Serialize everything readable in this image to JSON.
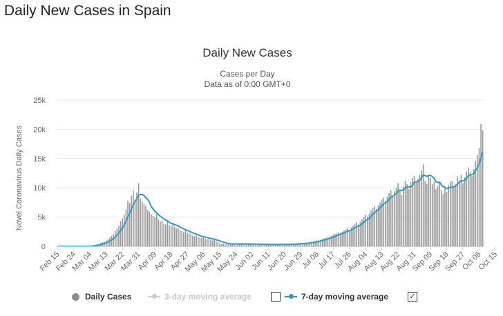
{
  "page_title": "Daily New Cases in Spain",
  "colors": {
    "bar": "#999999",
    "ma7": "#2b9bc4",
    "ma3": "#c8c8c8",
    "grid": "#e6e6e6",
    "axis": "#ccd6eb"
  },
  "legend": {
    "daily": "Daily Cases",
    "ma3": "3-day moving average",
    "ma7": "7-day moving average",
    "ma3_checked": "",
    "ma7_checked": "✓"
  },
  "chart_data": {
    "type": "bar",
    "title": "Daily New Cases",
    "subtitle": "Cases per Day",
    "subtitle2": "Data as of 0:00 GMT+0",
    "ylabel": "Novel Coronavirus Daily Cases",
    "xlabel": "",
    "ylim": [
      0,
      25000
    ],
    "yticks": [
      0,
      5000,
      10000,
      15000,
      20000,
      25000
    ],
    "ytick_labels": [
      "0",
      "5k",
      "10k",
      "15k",
      "20k",
      "25k"
    ],
    "x_tick_labels": [
      "Feb 15",
      "Feb 24",
      "Mar 04",
      "Mar 13",
      "Mar 22",
      "Mar 31",
      "Apr 09",
      "Apr 18",
      "Apr 27",
      "May 06",
      "May 15",
      "May 24",
      "Jun 02",
      "Jun 11",
      "Jun 20",
      "Jun 29",
      "Jul 08",
      "Jul 17",
      "Jul 26",
      "Aug 04",
      "Aug 13",
      "Aug 22",
      "Aug 31",
      "Sep 09",
      "Sep 18",
      "Sep 27",
      "Oct 06",
      "Oct 15"
    ],
    "x_tick_interval_days": 9,
    "grid": true,
    "legend_position": "bottom",
    "anchors": [
      [
        0,
        0
      ],
      [
        9,
        10
      ],
      [
        14,
        80
      ],
      [
        18,
        400
      ],
      [
        20,
        1000
      ],
      [
        22,
        2000
      ],
      [
        24,
        3500
      ],
      [
        26,
        5500
      ],
      [
        28,
        7500
      ],
      [
        30,
        9000
      ],
      [
        32,
        9500
      ],
      [
        34,
        8500
      ],
      [
        36,
        7500
      ],
      [
        38,
        6500
      ],
      [
        40,
        5500
      ],
      [
        42,
        5000
      ],
      [
        46,
        4500
      ],
      [
        50,
        4000
      ],
      [
        54,
        3500
      ],
      [
        58,
        2800
      ],
      [
        62,
        2200
      ],
      [
        66,
        1700
      ],
      [
        70,
        1300
      ],
      [
        75,
        1000
      ],
      [
        79,
        600
      ],
      [
        82,
        400
      ],
      [
        90,
        400
      ],
      [
        100,
        400
      ],
      [
        110,
        350
      ],
      [
        120,
        330
      ],
      [
        130,
        350
      ],
      [
        140,
        500
      ],
      [
        145,
        800
      ],
      [
        150,
        1200
      ],
      [
        155,
        1700
      ],
      [
        160,
        2200
      ],
      [
        165,
        2500
      ],
      [
        170,
        3300
      ],
      [
        175,
        4200
      ],
      [
        180,
        5200
      ],
      [
        185,
        6300
      ],
      [
        190,
        7500
      ],
      [
        195,
        8300
      ],
      [
        200,
        8800
      ],
      [
        205,
        9200
      ],
      [
        210,
        10000
      ],
      [
        215,
        10500
      ],
      [
        216,
        11000
      ],
      [
        220,
        11200
      ],
      [
        225,
        10500
      ],
      [
        228,
        9700
      ],
      [
        232,
        9000
      ],
      [
        236,
        9500
      ],
      [
        240,
        10800
      ],
      [
        245,
        11000
      ],
      [
        250,
        11500
      ],
      [
        253,
        12000
      ],
      [
        256,
        14000
      ],
      [
        258,
        15500
      ]
    ],
    "bars_note": "Daily cases per day from Feb 15 to Oct 23; exact values estimated from chart, drawn from series.daily",
    "series": [
      {
        "name": "Daily Cases",
        "kind": "bar"
      },
      {
        "name": "7-day moving average",
        "kind": "line"
      }
    ],
    "daily": [
      0,
      0,
      0,
      0,
      0,
      0,
      0,
      0,
      0,
      2,
      3,
      5,
      8,
      10,
      15,
      25,
      35,
      50,
      80,
      120,
      180,
      250,
      350,
      450,
      600,
      700,
      800,
      1000,
      1200,
      1500,
      1800,
      2100,
      2600,
      3000,
      3500,
      4300,
      4800,
      5400,
      6300,
      7800,
      7400,
      8600,
      9600,
      8000,
      9200,
      10800,
      8200,
      7700,
      7300,
      6900,
      6200,
      5900,
      5500,
      5200,
      5000,
      5600,
      4600,
      4200,
      4400,
      3900,
      3700,
      4200,
      3600,
      3500,
      3800,
      3300,
      3000,
      3100,
      2700,
      2600,
      2400,
      2800,
      2300,
      2200,
      2100,
      1800,
      1700,
      1900,
      1600,
      1500,
      1400,
      1700,
      1300,
      1200,
      1250,
      1100,
      1000,
      1150,
      900,
      700,
      500,
      400,
      450,
      380,
      420,
      450,
      400,
      420,
      380,
      410,
      430,
      390,
      410,
      400,
      420,
      380,
      360,
      400,
      410,
      380,
      350,
      360,
      340,
      330,
      350,
      320,
      300,
      310,
      330,
      340,
      320,
      300,
      310,
      330,
      350,
      340,
      320,
      330,
      360,
      380,
      400,
      420,
      430,
      450,
      480,
      500,
      520,
      560,
      600,
      650,
      700,
      760,
      820,
      900,
      980,
      1050,
      1150,
      1250,
      1350,
      1450,
      1550,
      1650,
      1800,
      1950,
      2100,
      2250,
      2400,
      2200,
      2500,
      2700,
      2900,
      3100,
      2800,
      3200,
      3500,
      3800,
      4100,
      3700,
      4200,
      4600,
      5000,
      5400,
      5100,
      5600,
      6100,
      6500,
      6900,
      6400,
      7000,
      7500,
      8000,
      8300,
      7800,
      8500,
      9100,
      9600,
      8700,
      9400,
      10000,
      10800,
      9500,
      8800,
      10200,
      11200,
      10600,
      9800,
      11000,
      11700,
      12000,
      10900,
      11500,
      12200,
      13000,
      14000,
      11200,
      10700,
      12200,
      11700,
      10600,
      11000,
      9800,
      10300,
      11000,
      9600,
      9000,
      10000,
      9300,
      10500,
      11000,
      11200,
      10000,
      10600,
      12000,
      11300,
      12300,
      10800,
      11800,
      12800,
      13500,
      12700,
      12000,
      13200,
      14600,
      15600,
      16800,
      20900,
      19800
    ]
  }
}
